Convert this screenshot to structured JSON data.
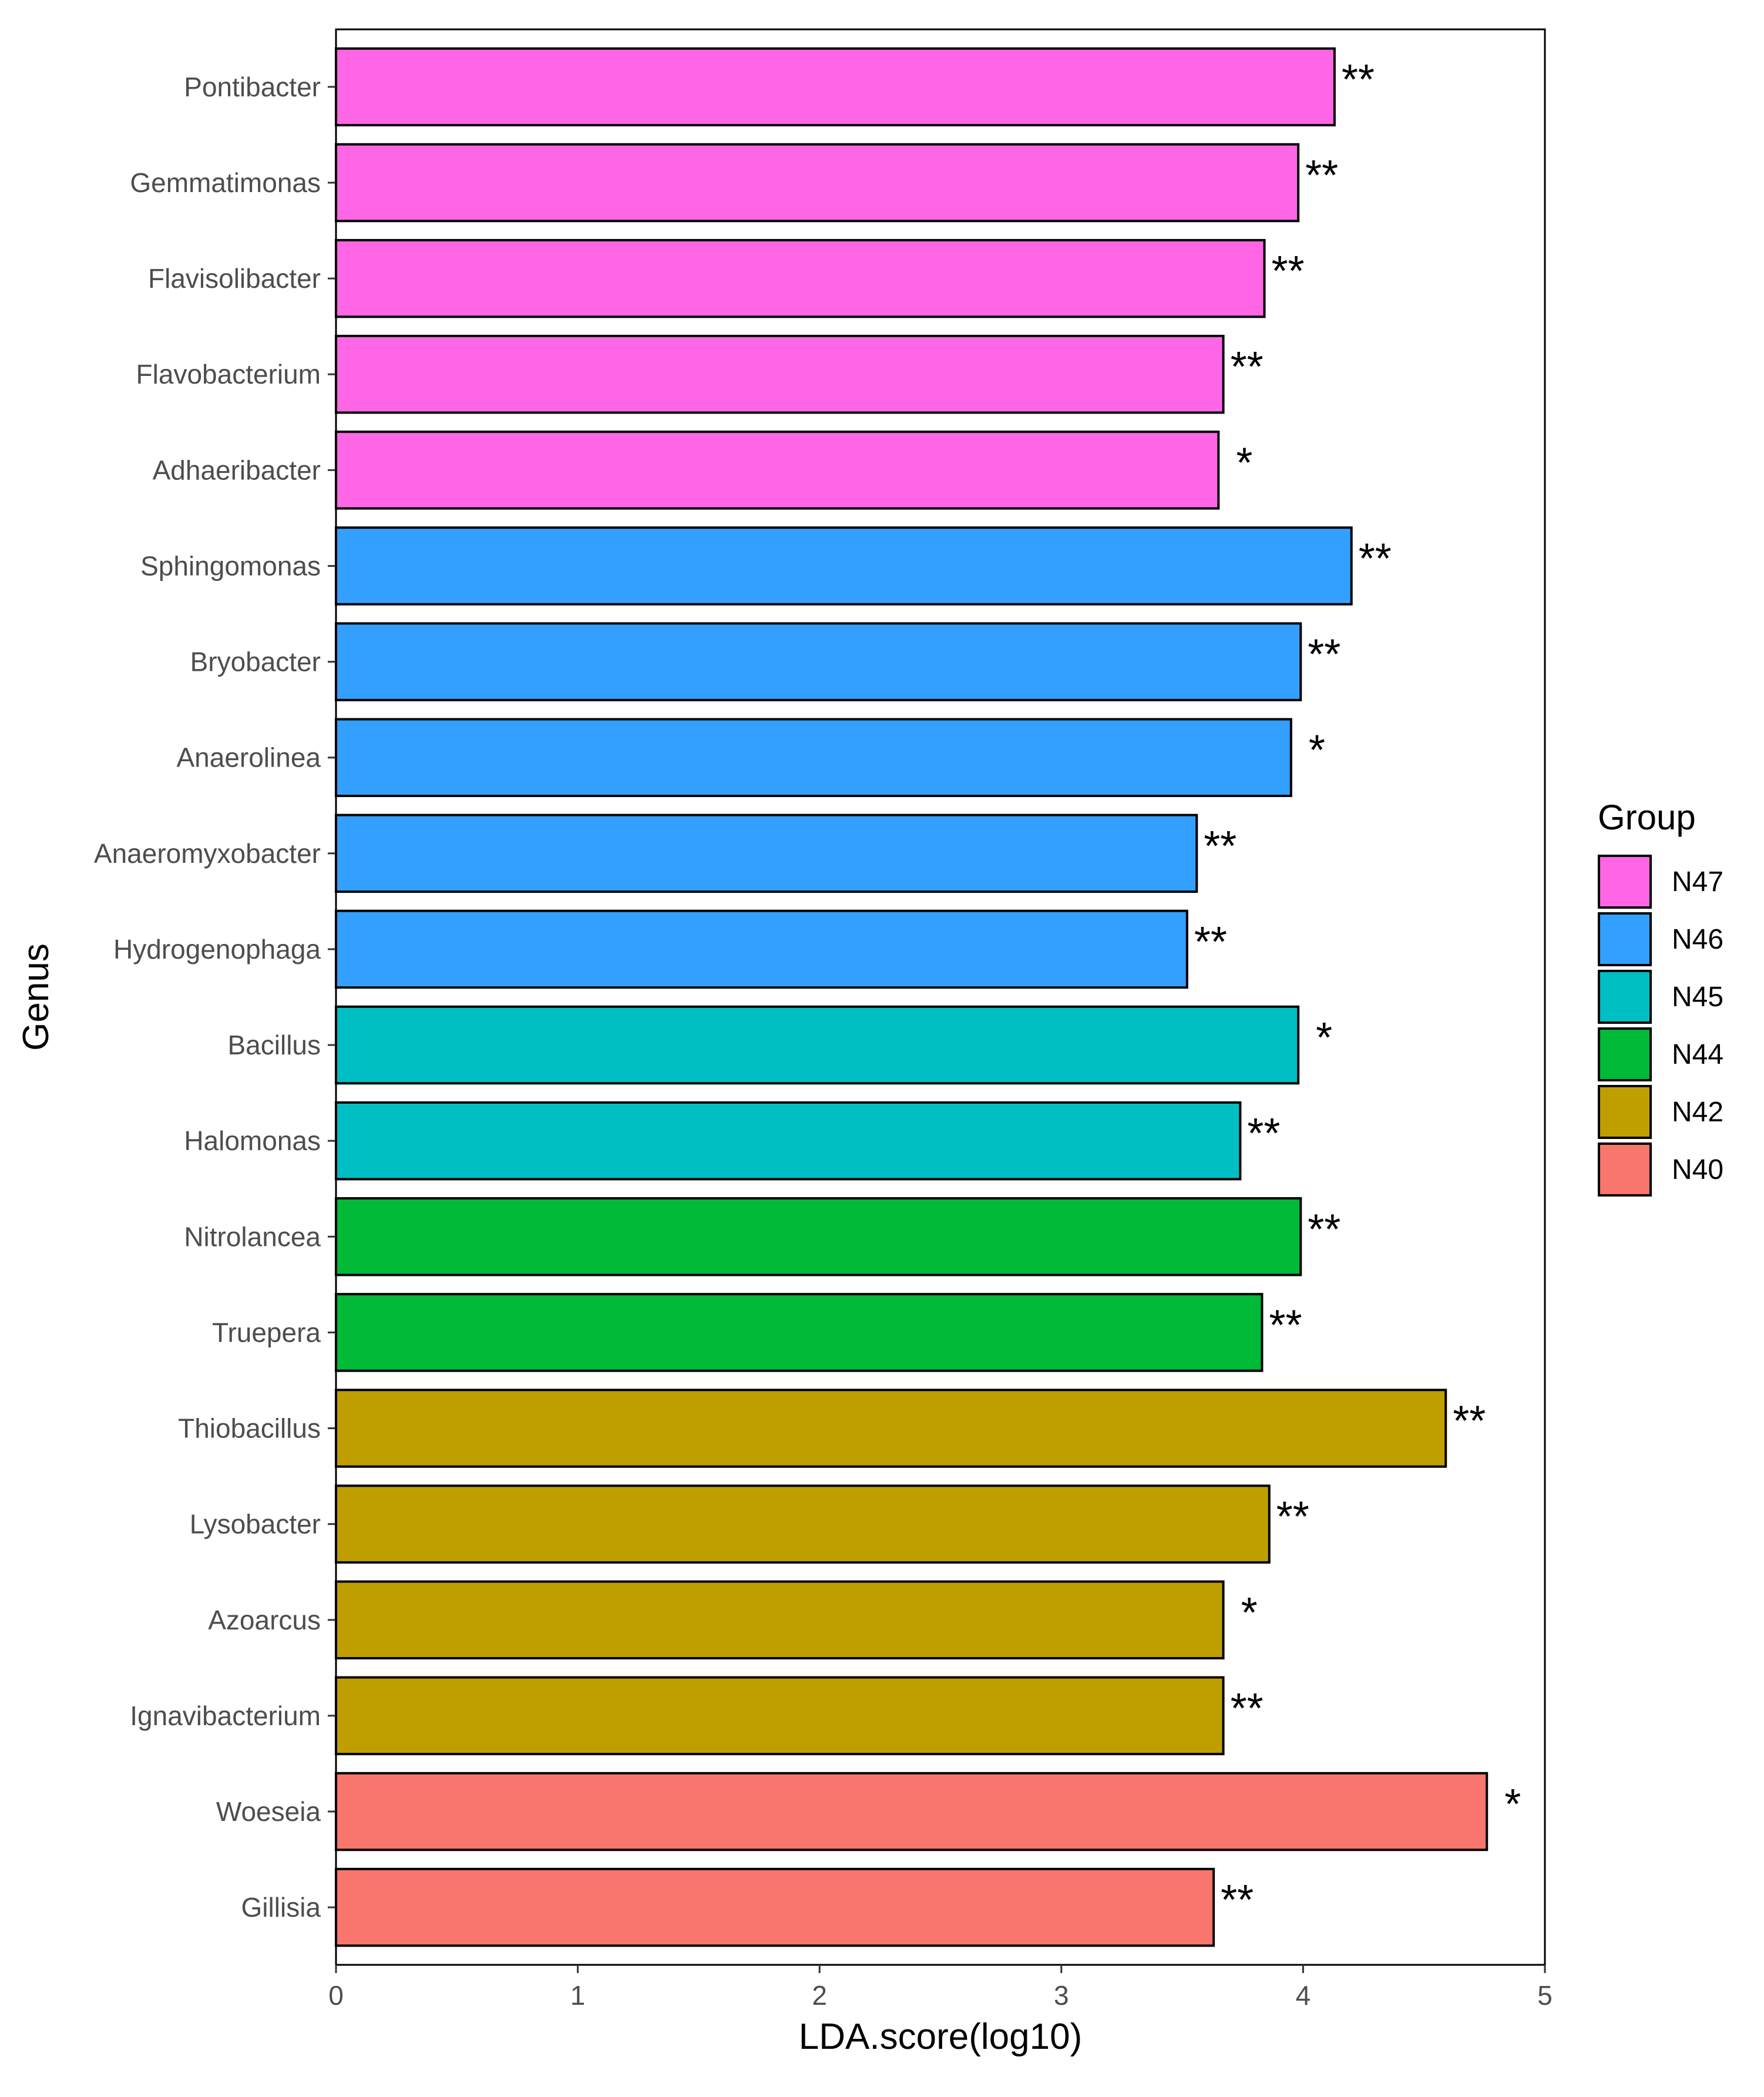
{
  "chart_data": {
    "type": "bar",
    "orientation": "horizontal",
    "xlabel": "LDA.score(log10)",
    "ylabel": "Genus",
    "xlim": [
      0,
      5
    ],
    "xticks": [
      0,
      1,
      2,
      3,
      4,
      5
    ],
    "grid": false,
    "legend": {
      "title": "Group",
      "placement": "right",
      "entries": [
        {
          "label": "N47",
          "color": "#FF66E6"
        },
        {
          "label": "N46",
          "color": "#33A0FF"
        },
        {
          "label": "N45",
          "color": "#00BFC4"
        },
        {
          "label": "N44",
          "color": "#00BA38"
        },
        {
          "label": "N42",
          "color": "#BF9F00"
        },
        {
          "label": "N40",
          "color": "#F8766D"
        }
      ]
    },
    "bars": [
      {
        "genus": "Pontibacter",
        "value": 4.13,
        "group": "N47",
        "sig": "**"
      },
      {
        "genus": "Gemmatimonas",
        "value": 3.98,
        "group": "N47",
        "sig": "**"
      },
      {
        "genus": "Flavisolibacter",
        "value": 3.84,
        "group": "N47",
        "sig": "**"
      },
      {
        "genus": "Flavobacterium",
        "value": 3.67,
        "group": "N47",
        "sig": "**"
      },
      {
        "genus": "Adhaeribacter",
        "value": 3.65,
        "group": "N47",
        "sig": "*"
      },
      {
        "genus": "Sphingomonas",
        "value": 4.2,
        "group": "N46",
        "sig": "**"
      },
      {
        "genus": "Bryobacter",
        "value": 3.99,
        "group": "N46",
        "sig": "**"
      },
      {
        "genus": "Anaerolinea",
        "value": 3.95,
        "group": "N46",
        "sig": "*"
      },
      {
        "genus": "Anaeromyxobacter",
        "value": 3.56,
        "group": "N46",
        "sig": "**"
      },
      {
        "genus": "Hydrogenophaga",
        "value": 3.52,
        "group": "N46",
        "sig": "**"
      },
      {
        "genus": "Bacillus",
        "value": 3.98,
        "group": "N45",
        "sig": "*"
      },
      {
        "genus": "Halomonas",
        "value": 3.74,
        "group": "N45",
        "sig": "**"
      },
      {
        "genus": "Nitrolancea",
        "value": 3.99,
        "group": "N44",
        "sig": "**"
      },
      {
        "genus": "Truepera",
        "value": 3.83,
        "group": "N44",
        "sig": "**"
      },
      {
        "genus": "Thiobacillus",
        "value": 4.59,
        "group": "N42",
        "sig": "**"
      },
      {
        "genus": "Lysobacter",
        "value": 3.86,
        "group": "N42",
        "sig": "**"
      },
      {
        "genus": "Azoarcus",
        "value": 3.67,
        "group": "N42",
        "sig": "*"
      },
      {
        "genus": "Ignavibacterium",
        "value": 3.67,
        "group": "N42",
        "sig": "**"
      },
      {
        "genus": "Woeseia",
        "value": 4.76,
        "group": "N40",
        "sig": "*"
      },
      {
        "genus": "Gillisia",
        "value": 3.63,
        "group": "N40",
        "sig": "**"
      }
    ]
  }
}
